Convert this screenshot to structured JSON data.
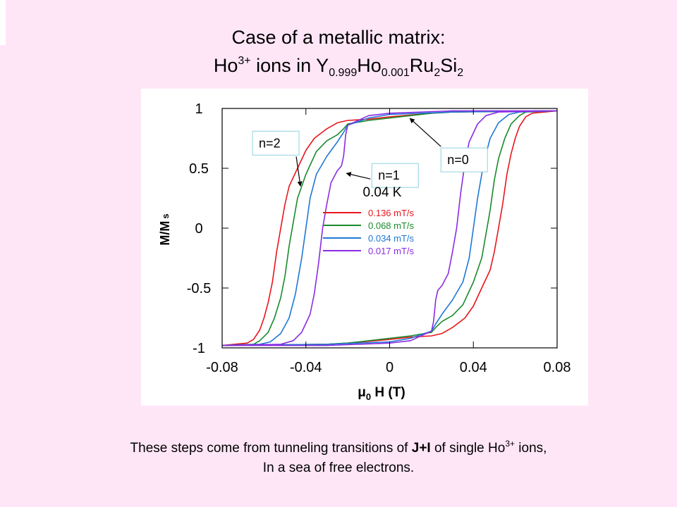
{
  "title": {
    "line1": "Case of a metallic matrix:",
    "line2": {
      "ion": "Ho",
      "ion_sup": "3+",
      "mid": " ions in ",
      "f1": "Y",
      "f1_sub": "0.999",
      "f2": "Ho",
      "f2_sub": "0.001",
      "f3": "Ru",
      "f3_sub": "2",
      "f4": "Si",
      "f4_sub": "2"
    }
  },
  "caption": {
    "line1_a": "These steps come from tunneling transitions of ",
    "line1_bold": "J+I",
    "line1_b": " of single Ho",
    "line1_sup": "3+",
    "line1_c": " ions,",
    "line2": "In a sea of free electrons."
  },
  "chart_data": {
    "type": "line",
    "xlabel_mu": "μ",
    "xlabel_sub": "0",
    "xlabel_rest": " H (T)",
    "ylabel_main": "M/M",
    "ylabel_sub": "s",
    "xlim": [
      -0.08,
      0.08
    ],
    "ylim": [
      -1,
      1
    ],
    "xticks": [
      -0.08,
      -0.04,
      0,
      0.04,
      0.08
    ],
    "xtick_labels": [
      "-0.08",
      "-0.04",
      "0",
      "0.04",
      "0.08"
    ],
    "yticks": [
      1,
      0.5,
      0,
      -0.5,
      -1
    ],
    "ytick_labels": [
      "1",
      "0.5",
      "0",
      "-0.5",
      "-1"
    ],
    "grid": false,
    "legend_placement": "center-right",
    "temperature_label": "0.04 K",
    "annotations": [
      {
        "text": "n=2",
        "x": -0.0655,
        "y": 0.81
      },
      {
        "text": "n=1",
        "x": -0.0085,
        "y": 0.54
      },
      {
        "text": "n=0",
        "x": 0.0245,
        "y": 0.67
      }
    ],
    "series": [
      {
        "name": "0.136 mT/s",
        "color": "#e8161c",
        "sweep_down": [
          [
            0.08,
            0.98
          ],
          [
            0.03,
            0.97
          ],
          [
            0.02,
            0.96
          ],
          [
            0.0,
            0.93
          ],
          [
            -0.01,
            0.91
          ],
          [
            -0.02,
            0.9
          ],
          [
            -0.025,
            0.88
          ],
          [
            -0.03,
            0.83
          ],
          [
            -0.036,
            0.75
          ],
          [
            -0.04,
            0.65
          ],
          [
            -0.044,
            0.5
          ],
          [
            -0.048,
            0.35
          ],
          [
            -0.05,
            0.2
          ],
          [
            -0.052,
            0.0
          ],
          [
            -0.054,
            -0.2
          ],
          [
            -0.056,
            -0.45
          ],
          [
            -0.058,
            -0.62
          ],
          [
            -0.06,
            -0.75
          ],
          [
            -0.062,
            -0.85
          ],
          [
            -0.065,
            -0.93
          ],
          [
            -0.068,
            -0.96
          ],
          [
            -0.08,
            -0.98
          ]
        ],
        "sweep_up": [
          [
            -0.08,
            -0.98
          ],
          [
            -0.03,
            -0.97
          ],
          [
            -0.02,
            -0.96
          ],
          [
            0.0,
            -0.93
          ],
          [
            0.01,
            -0.91
          ],
          [
            0.02,
            -0.9
          ],
          [
            0.025,
            -0.88
          ],
          [
            0.03,
            -0.83
          ],
          [
            0.036,
            -0.75
          ],
          [
            0.04,
            -0.65
          ],
          [
            0.044,
            -0.5
          ],
          [
            0.048,
            -0.35
          ],
          [
            0.05,
            -0.2
          ],
          [
            0.052,
            0.0
          ],
          [
            0.054,
            0.2
          ],
          [
            0.056,
            0.45
          ],
          [
            0.058,
            0.62
          ],
          [
            0.06,
            0.75
          ],
          [
            0.062,
            0.85
          ],
          [
            0.065,
            0.93
          ],
          [
            0.068,
            0.96
          ],
          [
            0.08,
            0.98
          ]
        ]
      },
      {
        "name": "0.068 mT/s",
        "color": "#1a8a2c",
        "sweep_down": [
          [
            0.08,
            0.98
          ],
          [
            0.03,
            0.97
          ],
          [
            0.02,
            0.96
          ],
          [
            0.0,
            0.92
          ],
          [
            -0.01,
            0.9
          ],
          [
            -0.02,
            0.87
          ],
          [
            -0.022,
            0.83
          ],
          [
            -0.025,
            0.78
          ],
          [
            -0.03,
            0.73
          ],
          [
            -0.035,
            0.64
          ],
          [
            -0.04,
            0.45
          ],
          [
            -0.044,
            0.25
          ],
          [
            -0.046,
            0.05
          ],
          [
            -0.048,
            -0.15
          ],
          [
            -0.05,
            -0.4
          ],
          [
            -0.052,
            -0.58
          ],
          [
            -0.055,
            -0.75
          ],
          [
            -0.058,
            -0.87
          ],
          [
            -0.062,
            -0.94
          ],
          [
            -0.065,
            -0.97
          ],
          [
            -0.08,
            -0.98
          ]
        ],
        "sweep_up": [
          [
            -0.08,
            -0.98
          ],
          [
            -0.03,
            -0.97
          ],
          [
            -0.02,
            -0.96
          ],
          [
            0.0,
            -0.92
          ],
          [
            0.01,
            -0.9
          ],
          [
            0.02,
            -0.87
          ],
          [
            0.022,
            -0.83
          ],
          [
            0.025,
            -0.78
          ],
          [
            0.03,
            -0.73
          ],
          [
            0.035,
            -0.64
          ],
          [
            0.04,
            -0.45
          ],
          [
            0.044,
            -0.25
          ],
          [
            0.046,
            -0.05
          ],
          [
            0.048,
            0.15
          ],
          [
            0.05,
            0.4
          ],
          [
            0.052,
            0.58
          ],
          [
            0.055,
            0.75
          ],
          [
            0.058,
            0.87
          ],
          [
            0.062,
            0.94
          ],
          [
            0.065,
            0.97
          ],
          [
            0.08,
            0.98
          ]
        ]
      },
      {
        "name": "0.034 mT/s",
        "color": "#1f78d6",
        "sweep_down": [
          [
            0.08,
            0.98
          ],
          [
            0.03,
            0.97
          ],
          [
            0.0,
            0.95
          ],
          [
            -0.01,
            0.92
          ],
          [
            -0.015,
            0.89
          ],
          [
            -0.02,
            0.86
          ],
          [
            -0.022,
            0.8
          ],
          [
            -0.025,
            0.72
          ],
          [
            -0.03,
            0.6
          ],
          [
            -0.035,
            0.45
          ],
          [
            -0.038,
            0.25
          ],
          [
            -0.04,
            0.0
          ],
          [
            -0.042,
            -0.25
          ],
          [
            -0.045,
            -0.55
          ],
          [
            -0.048,
            -0.75
          ],
          [
            -0.052,
            -0.88
          ],
          [
            -0.057,
            -0.95
          ],
          [
            -0.062,
            -0.97
          ],
          [
            -0.08,
            -0.98
          ]
        ],
        "sweep_up": [
          [
            -0.08,
            -0.98
          ],
          [
            -0.03,
            -0.97
          ],
          [
            0.0,
            -0.95
          ],
          [
            0.01,
            -0.92
          ],
          [
            0.015,
            -0.89
          ],
          [
            0.02,
            -0.86
          ],
          [
            0.022,
            -0.8
          ],
          [
            0.025,
            -0.72
          ],
          [
            0.03,
            -0.6
          ],
          [
            0.035,
            -0.45
          ],
          [
            0.038,
            -0.25
          ],
          [
            0.04,
            0.0
          ],
          [
            0.042,
            0.25
          ],
          [
            0.045,
            0.55
          ],
          [
            0.048,
            0.75
          ],
          [
            0.052,
            0.88
          ],
          [
            0.057,
            0.95
          ],
          [
            0.062,
            0.97
          ],
          [
            0.08,
            0.98
          ]
        ]
      },
      {
        "name": "0.017 mT/s",
        "color": "#8a2be2",
        "sweep_down": [
          [
            0.08,
            0.98
          ],
          [
            0.03,
            0.98
          ],
          [
            0.0,
            0.96
          ],
          [
            -0.01,
            0.94
          ],
          [
            -0.015,
            0.9
          ],
          [
            -0.02,
            0.86
          ],
          [
            -0.021,
            0.78
          ],
          [
            -0.022,
            0.6
          ],
          [
            -0.023,
            0.52
          ],
          [
            -0.025,
            0.48
          ],
          [
            -0.028,
            0.38
          ],
          [
            -0.03,
            0.2
          ],
          [
            -0.032,
            0.0
          ],
          [
            -0.034,
            -0.3
          ],
          [
            -0.036,
            -0.55
          ],
          [
            -0.038,
            -0.72
          ],
          [
            -0.042,
            -0.87
          ],
          [
            -0.046,
            -0.94
          ],
          [
            -0.052,
            -0.97
          ],
          [
            -0.08,
            -0.98
          ]
        ],
        "sweep_up": [
          [
            -0.08,
            -0.98
          ],
          [
            -0.03,
            -0.98
          ],
          [
            0.0,
            -0.96
          ],
          [
            0.01,
            -0.94
          ],
          [
            0.015,
            -0.9
          ],
          [
            0.02,
            -0.86
          ],
          [
            0.021,
            -0.78
          ],
          [
            0.022,
            -0.6
          ],
          [
            0.023,
            -0.52
          ],
          [
            0.025,
            -0.48
          ],
          [
            0.028,
            -0.38
          ],
          [
            0.03,
            -0.2
          ],
          [
            0.032,
            0.0
          ],
          [
            0.034,
            0.3
          ],
          [
            0.036,
            0.55
          ],
          [
            0.038,
            0.72
          ],
          [
            0.042,
            0.87
          ],
          [
            0.046,
            0.94
          ],
          [
            0.052,
            0.97
          ],
          [
            0.08,
            0.98
          ]
        ]
      }
    ]
  }
}
